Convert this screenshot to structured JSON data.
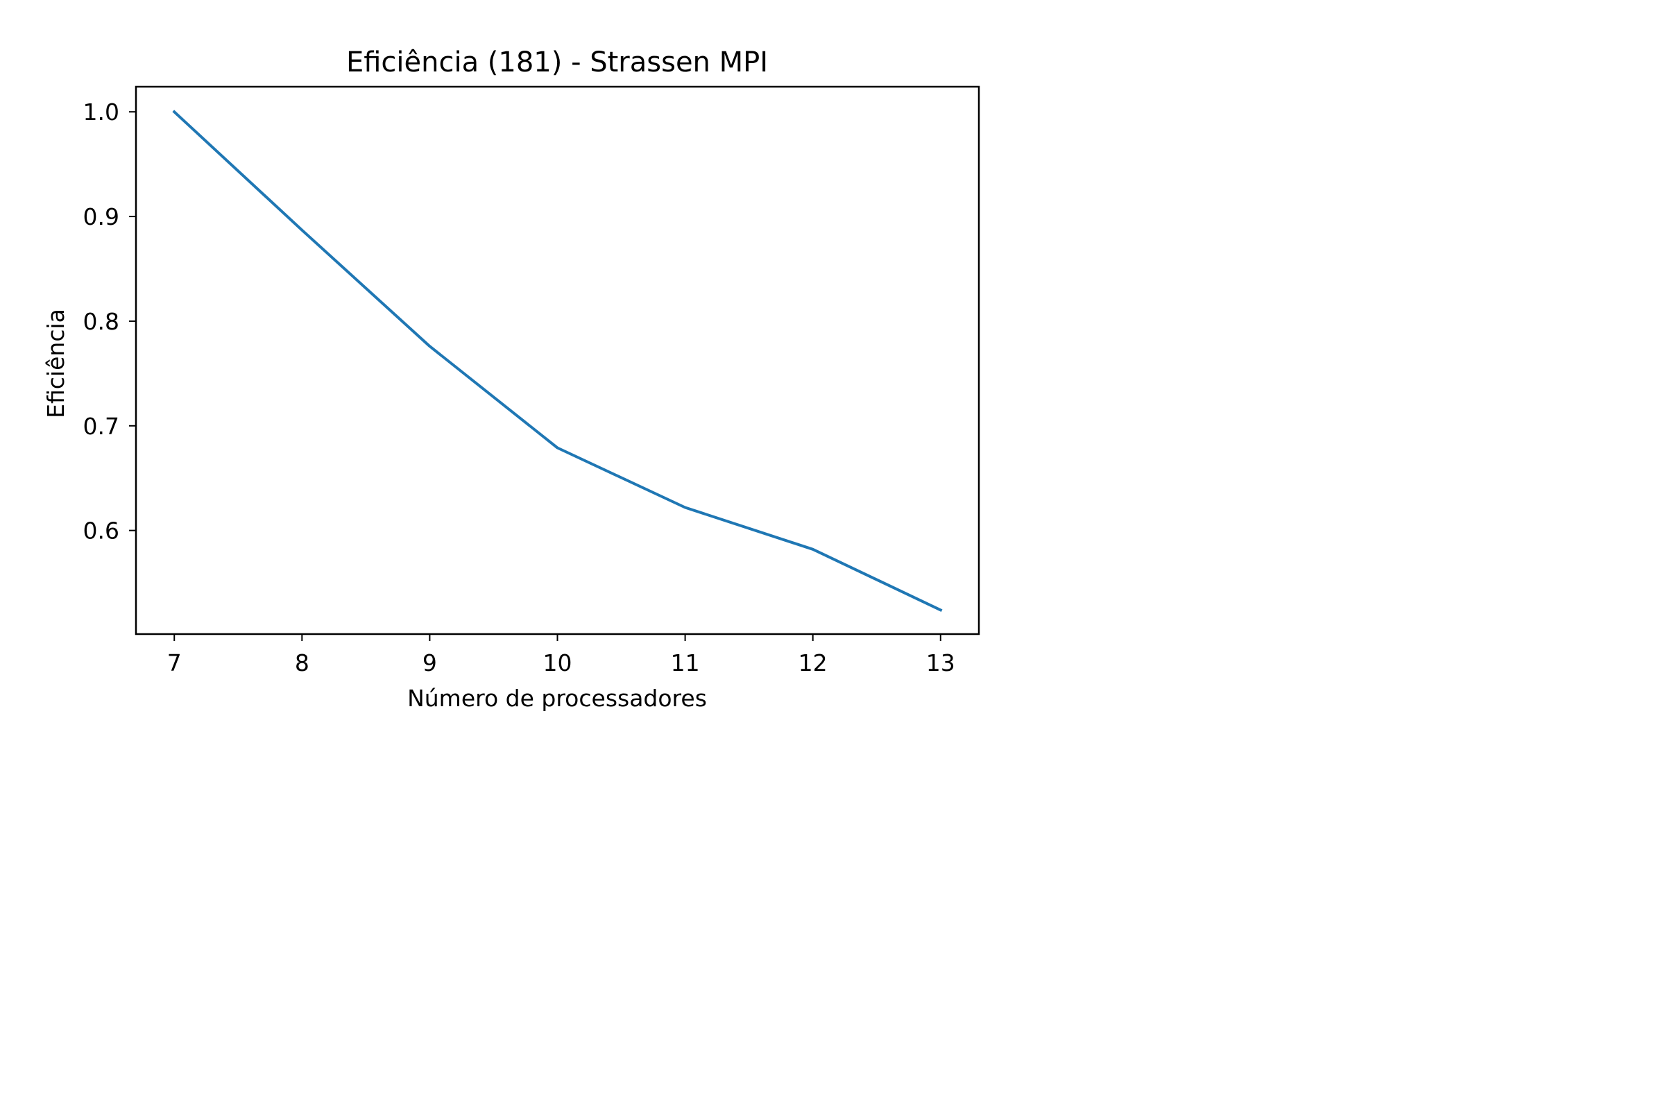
{
  "chart_data": {
    "type": "line",
    "title": "Eficiência (181) - Strassen MPI",
    "xlabel": "Número de processadores",
    "ylabel": "Eficiência",
    "x": [
      7,
      8,
      9,
      10,
      11,
      12,
      13
    ],
    "xticks": [
      "7",
      "8",
      "9",
      "10",
      "11",
      "12",
      "13"
    ],
    "yticks": [
      "0.6",
      "0.7",
      "0.8",
      "0.9",
      "1.0"
    ],
    "ytick_values": [
      0.6,
      0.7,
      0.8,
      0.9,
      1.0
    ],
    "xlim": [
      6.7,
      13.3
    ],
    "ylim": [
      0.501,
      1.024
    ],
    "grid": false,
    "series": [
      {
        "values": [
          1.0,
          0.887,
          0.776,
          0.679,
          0.622,
          0.582,
          0.524
        ],
        "color": "#1f77b4"
      }
    ]
  }
}
